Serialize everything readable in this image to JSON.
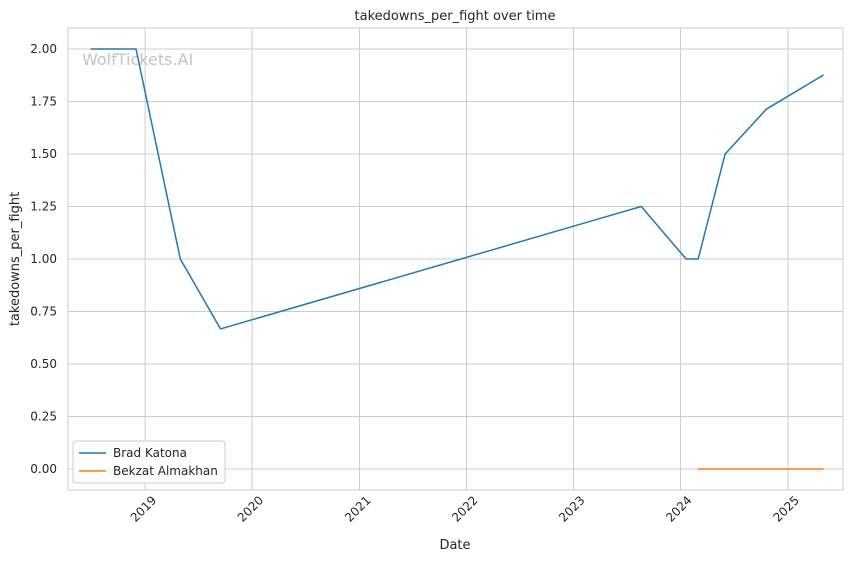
{
  "chart_data": {
    "type": "line",
    "title": "takedowns_per_fight over time",
    "xlabel": "Date",
    "ylabel": "takedowns_per_fight",
    "watermark": "WolfTickets.AI",
    "grid": true,
    "legend_position": "lower-left",
    "xlim": [
      "2018-04-13",
      "2025-07-08"
    ],
    "ylim": [
      -0.1,
      2.1
    ],
    "x_ticks": [
      {
        "date": "2019-01-01",
        "label": "2019"
      },
      {
        "date": "2020-01-01",
        "label": "2020"
      },
      {
        "date": "2021-01-01",
        "label": "2021"
      },
      {
        "date": "2022-01-01",
        "label": "2022"
      },
      {
        "date": "2023-01-01",
        "label": "2023"
      },
      {
        "date": "2024-01-01",
        "label": "2024"
      },
      {
        "date": "2025-01-01",
        "label": "2025"
      }
    ],
    "y_ticks": [
      {
        "value": 0.0,
        "label": "0.00"
      },
      {
        "value": 0.25,
        "label": "0.25"
      },
      {
        "value": 0.5,
        "label": "0.50"
      },
      {
        "value": 0.75,
        "label": "0.75"
      },
      {
        "value": 1.0,
        "label": "1.00"
      },
      {
        "value": 1.25,
        "label": "1.25"
      },
      {
        "value": 1.5,
        "label": "1.50"
      },
      {
        "value": 1.75,
        "label": "1.75"
      },
      {
        "value": 2.0,
        "label": "2.00"
      }
    ],
    "series": [
      {
        "name": "Brad Katona",
        "color": "#1f77b4",
        "points": [
          {
            "x": "2018-07-01",
            "y": 2.0
          },
          {
            "x": "2018-12-01",
            "y": 2.0
          },
          {
            "x": "2019-05-01",
            "y": 1.0
          },
          {
            "x": "2019-09-15",
            "y": 0.667
          },
          {
            "x": "2023-08-20",
            "y": 1.25
          },
          {
            "x": "2024-01-20",
            "y": 1.0
          },
          {
            "x": "2024-03-01",
            "y": 1.0
          },
          {
            "x": "2024-06-01",
            "y": 1.5
          },
          {
            "x": "2024-10-20",
            "y": 1.714
          },
          {
            "x": "2025-05-01",
            "y": 1.875
          }
        ]
      },
      {
        "name": "Bekzat Almakhan",
        "color": "#ff7f0e",
        "points": [
          {
            "x": "2024-03-01",
            "y": 0.0
          },
          {
            "x": "2024-10-20",
            "y": 0.0
          },
          {
            "x": "2025-05-01",
            "y": 0.0
          }
        ]
      }
    ]
  }
}
